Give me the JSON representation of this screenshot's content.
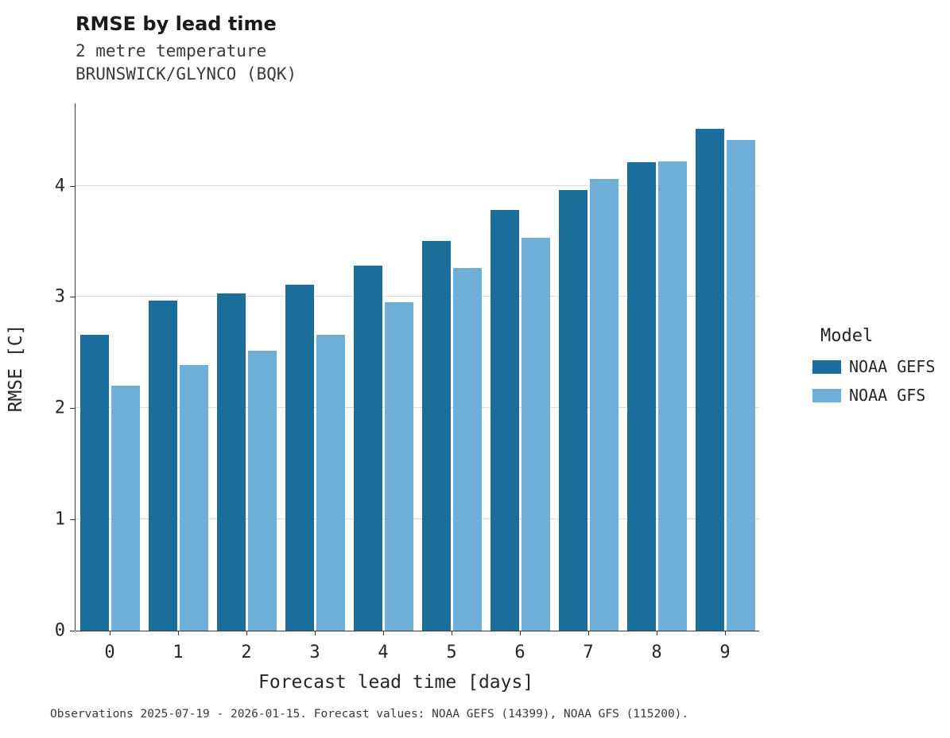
{
  "chart_data": {
    "type": "bar",
    "title": "RMSE by lead time",
    "subtitle1": "2 metre temperature",
    "subtitle2": "BRUNSWICK/GLYNCO (BQK)",
    "xlabel": "Forecast lead time [days]",
    "ylabel": "RMSE [C]",
    "categories": [
      "0",
      "1",
      "2",
      "3",
      "4",
      "5",
      "6",
      "7",
      "8",
      "9"
    ],
    "series": [
      {
        "name": "NOAA GEFS",
        "color": "#1b6d9c",
        "values": [
          2.66,
          2.97,
          3.03,
          3.11,
          3.28,
          3.5,
          3.78,
          3.96,
          4.21,
          4.51
        ]
      },
      {
        "name": "NOAA GFS",
        "color": "#6fafd7",
        "values": [
          2.2,
          2.39,
          2.52,
          2.66,
          2.95,
          3.26,
          3.53,
          4.06,
          4.22,
          4.41
        ]
      }
    ],
    "ylim": [
      0,
      4.74
    ],
    "yticks": [
      "0",
      "1",
      "2",
      "3",
      "4"
    ],
    "ytick_values": [
      0,
      1,
      2,
      3,
      4
    ],
    "grid": "horizontal",
    "legend_position": "right",
    "legend_title": "Model"
  },
  "caption": "Observations 2025-07-19 - 2026-01-15. Forecast values: NOAA GEFS (14399), NOAA GFS (115200)."
}
